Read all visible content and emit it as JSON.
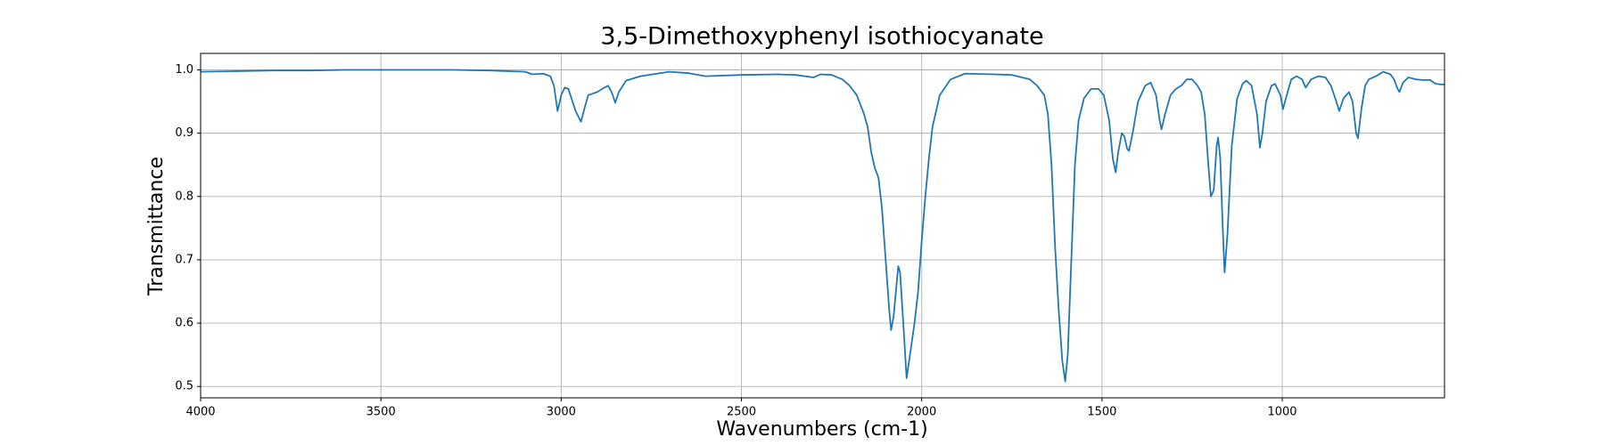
{
  "chart_data": {
    "type": "line",
    "title": "3,5-Dimethoxyphenyl isothiocyanate",
    "xlabel": "Wavenumbers (cm-1)",
    "ylabel": "Transmittance",
    "xlim": [
      4000,
      550
    ],
    "ylim": [
      0.482,
      1.026
    ],
    "xticks": [
      4000,
      3500,
      3000,
      2500,
      2000,
      1500,
      1000
    ],
    "yticks": [
      0.5,
      0.6,
      0.7,
      0.8,
      0.9,
      {
        "value": 1.0,
        "label": "1.0"
      }
    ],
    "grid": true,
    "x": [
      4000,
      3900,
      3800,
      3700,
      3600,
      3500,
      3400,
      3300,
      3200,
      3100,
      3080,
      3050,
      3030,
      3020,
      3010,
      3000,
      2990,
      2980,
      2960,
      2945,
      2935,
      2925,
      2900,
      2880,
      2870,
      2860,
      2850,
      2840,
      2820,
      2780,
      2700,
      2650,
      2600,
      2500,
      2400,
      2350,
      2300,
      2280,
      2250,
      2220,
      2200,
      2180,
      2160,
      2150,
      2140,
      2130,
      2120,
      2110,
      2100,
      2090,
      2085,
      2078,
      2070,
      2065,
      2060,
      2050,
      2042,
      2035,
      2020,
      2010,
      2000,
      1990,
      1980,
      1970,
      1950,
      1920,
      1880,
      1800,
      1750,
      1700,
      1680,
      1660,
      1650,
      1640,
      1630,
      1620,
      1610,
      1602,
      1595,
      1585,
      1575,
      1565,
      1550,
      1530,
      1510,
      1495,
      1480,
      1470,
      1462,
      1455,
      1445,
      1438,
      1430,
      1425,
      1415,
      1400,
      1380,
      1365,
      1350,
      1340,
      1335,
      1325,
      1310,
      1295,
      1280,
      1265,
      1250,
      1235,
      1225,
      1215,
      1205,
      1198,
      1190,
      1182,
      1178,
      1172,
      1165,
      1160,
      1152,
      1140,
      1125,
      1110,
      1100,
      1085,
      1070,
      1062,
      1055,
      1045,
      1030,
      1020,
      1005,
      998,
      990,
      975,
      960,
      945,
      935,
      920,
      900,
      880,
      865,
      850,
      842,
      830,
      815,
      805,
      795,
      790,
      780,
      770,
      760,
      740,
      720,
      700,
      690,
      680,
      675,
      665,
      650,
      630,
      610,
      590,
      575,
      560,
      550
    ],
    "series": [
      {
        "color": "#1f77b4",
        "values": [
          0.997,
          0.998,
          0.999,
          0.999,
          1.0,
          1.0,
          1.0,
          1.0,
          0.999,
          0.997,
          0.993,
          0.994,
          0.99,
          0.975,
          0.935,
          0.96,
          0.972,
          0.97,
          0.935,
          0.918,
          0.94,
          0.96,
          0.965,
          0.972,
          0.975,
          0.965,
          0.948,
          0.965,
          0.983,
          0.99,
          0.997,
          0.995,
          0.99,
          0.992,
          0.993,
          0.992,
          0.988,
          0.993,
          0.992,
          0.985,
          0.975,
          0.96,
          0.93,
          0.91,
          0.87,
          0.845,
          0.83,
          0.78,
          0.7,
          0.62,
          0.589,
          0.61,
          0.66,
          0.69,
          0.68,
          0.59,
          0.513,
          0.54,
          0.6,
          0.65,
          0.73,
          0.8,
          0.86,
          0.91,
          0.96,
          0.985,
          0.994,
          0.993,
          0.992,
          0.985,
          0.975,
          0.96,
          0.93,
          0.85,
          0.72,
          0.62,
          0.54,
          0.508,
          0.55,
          0.7,
          0.85,
          0.92,
          0.955,
          0.97,
          0.97,
          0.96,
          0.92,
          0.86,
          0.838,
          0.87,
          0.9,
          0.895,
          0.875,
          0.872,
          0.9,
          0.95,
          0.975,
          0.98,
          0.96,
          0.92,
          0.906,
          0.93,
          0.96,
          0.97,
          0.975,
          0.985,
          0.985,
          0.975,
          0.965,
          0.93,
          0.85,
          0.8,
          0.81,
          0.88,
          0.893,
          0.86,
          0.75,
          0.68,
          0.74,
          0.88,
          0.955,
          0.978,
          0.983,
          0.975,
          0.93,
          0.877,
          0.9,
          0.95,
          0.975,
          0.978,
          0.96,
          0.938,
          0.955,
          0.985,
          0.99,
          0.985,
          0.972,
          0.985,
          0.99,
          0.988,
          0.975,
          0.95,
          0.935,
          0.955,
          0.965,
          0.95,
          0.9,
          0.892,
          0.94,
          0.975,
          0.985,
          0.99,
          0.997,
          0.993,
          0.985,
          0.97,
          0.965,
          0.98,
          0.988,
          0.985,
          0.984,
          0.984,
          0.978,
          0.977,
          0.977
        ]
      }
    ]
  }
}
